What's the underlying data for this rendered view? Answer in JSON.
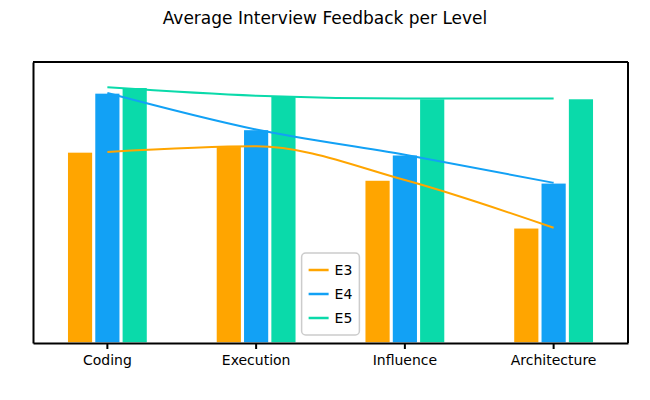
{
  "chart_data": {
    "type": "bar",
    "title": "Average Interview Feedback per Level",
    "categories": [
      "Coding",
      "Execution",
      "Influence",
      "Architecture"
    ],
    "series": [
      {
        "name": "E3",
        "color": "#ffa500",
        "line_style": "solid",
        "values": [
          0.68,
          0.7,
          0.58,
          0.41
        ]
      },
      {
        "name": "E4",
        "color": "#12a1f5",
        "line_style": "solid",
        "values": [
          0.89,
          0.76,
          0.67,
          0.57
        ]
      },
      {
        "name": "E5",
        "color": "#0adaaa",
        "line_style": "solid",
        "values": [
          0.91,
          0.88,
          0.87,
          0.87
        ]
      }
    ],
    "ylim": [
      0,
      1
    ],
    "tick_labels": "x",
    "legend": "lower center"
  }
}
